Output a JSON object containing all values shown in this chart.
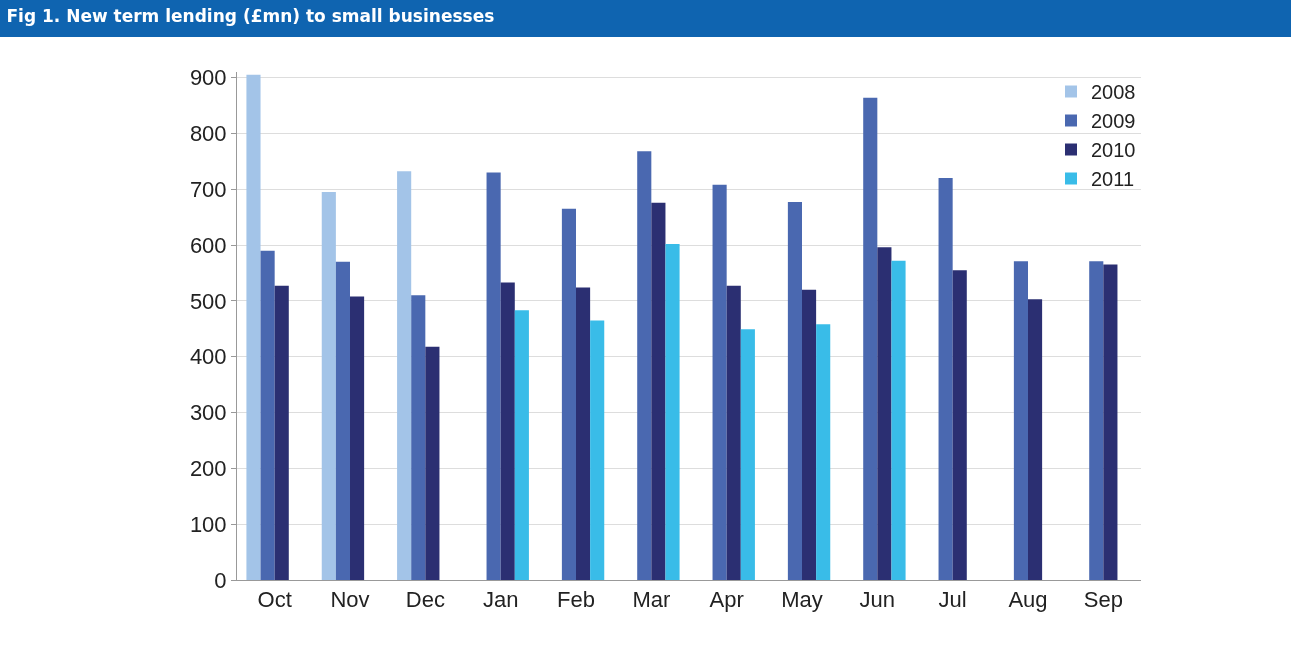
{
  "chart_data": {
    "type": "bar",
    "title": "Fig 1. New term lending (£mn) to small businesses",
    "categories": [
      "Oct",
      "Nov",
      "Dec",
      "Jan",
      "Feb",
      "Mar",
      "Apr",
      "May",
      "Jun",
      "Jul",
      "Aug",
      "Sep"
    ],
    "series": [
      {
        "name": "2008",
        "color": "#a3c4e8",
        "values": [
          905,
          695,
          732,
          null,
          null,
          null,
          null,
          null,
          null,
          null,
          null,
          null
        ]
      },
      {
        "name": "2009",
        "color": "#4a68b0",
        "values": [
          590,
          570,
          510,
          730,
          665,
          768,
          708,
          677,
          864,
          720,
          571,
          571
        ]
      },
      {
        "name": "2010",
        "color": "#2b2f72",
        "values": [
          527,
          508,
          418,
          533,
          524,
          676,
          527,
          520,
          596,
          555,
          503,
          565
        ]
      },
      {
        "name": "2011",
        "color": "#39bce8",
        "values": [
          null,
          null,
          null,
          483,
          465,
          602,
          449,
          458,
          572,
          null,
          null,
          null
        ]
      }
    ],
    "ylim": [
      0,
      910
    ],
    "yticks": [
      0,
      100,
      200,
      300,
      400,
      500,
      600,
      700,
      800,
      900
    ],
    "grid": "y",
    "legend": "top right"
  }
}
